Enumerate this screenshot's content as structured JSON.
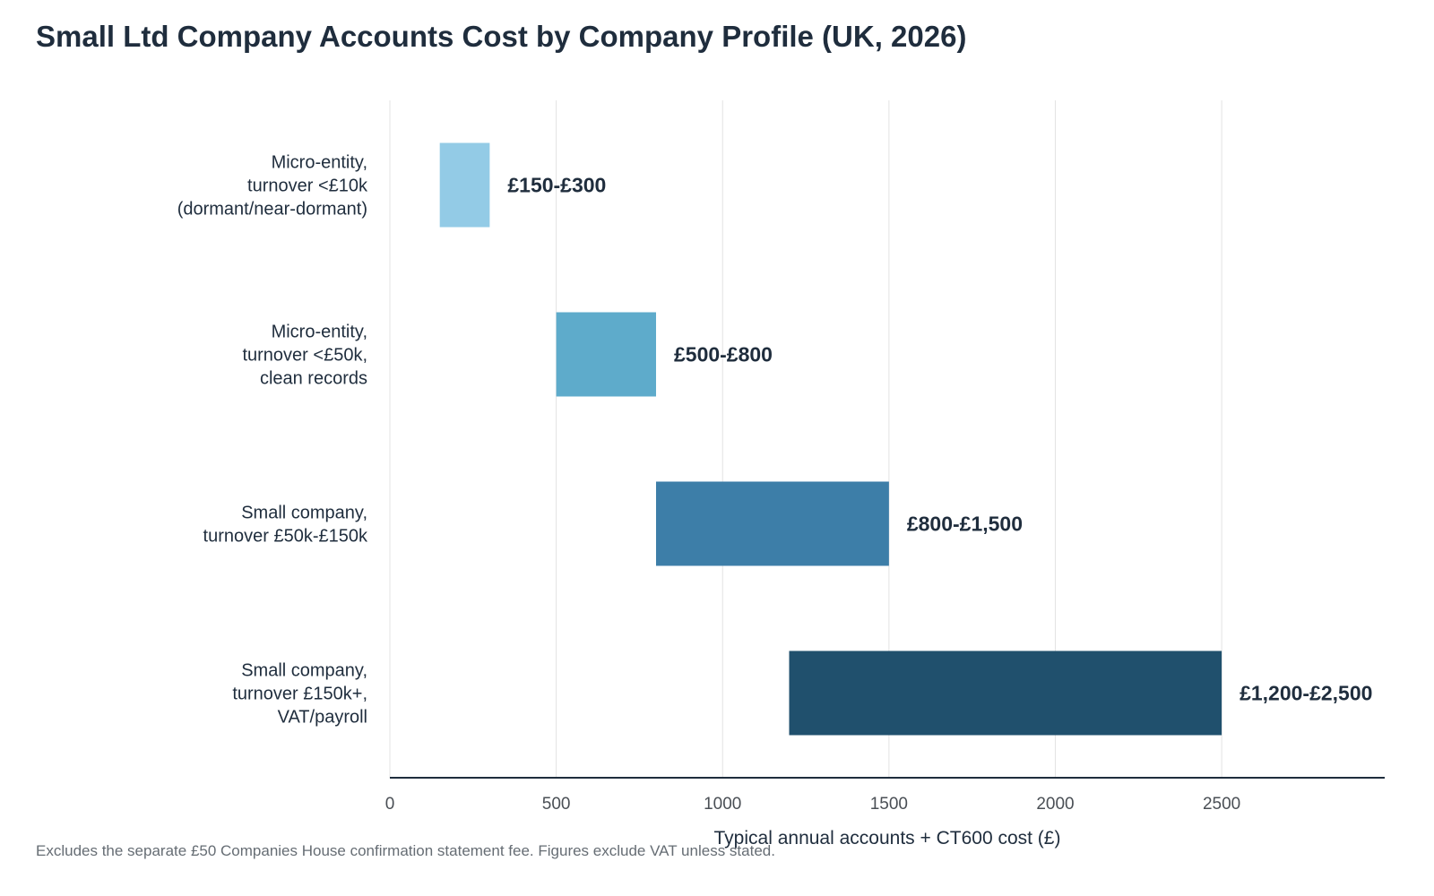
{
  "chart_data": {
    "type": "bar",
    "orientation": "horizontal",
    "title": "Small Ltd Company Accounts Cost by Company Profile (UK, 2026)",
    "xlabel": "Typical annual accounts + CT600 cost (£)",
    "ylabel": "",
    "xlim": [
      0,
      2990
    ],
    "xticks": [
      0,
      500,
      1000,
      1500,
      2000,
      2500
    ],
    "grid": "vertical",
    "legend": "none",
    "categories": [
      [
        "Micro-entity,",
        "turnover <£10k",
        "(dormant/near-dormant)"
      ],
      [
        "Micro-entity,",
        "turnover <£50k,",
        "clean records"
      ],
      [
        "Small company,",
        "turnover £50k-£150k"
      ],
      [
        "Small company,",
        "turnover £150k+,",
        "VAT/payroll"
      ]
    ],
    "ranges": [
      {
        "low": 150,
        "high": 300,
        "label": "£150-£300",
        "color": "#93cbe6"
      },
      {
        "low": 500,
        "high": 800,
        "label": "£500-£800",
        "color": "#5eabcb"
      },
      {
        "low": 800,
        "high": 1500,
        "label": "£800-£1,500",
        "color": "#3d7ea8"
      },
      {
        "low": 1200,
        "high": 2500,
        "label": "£1,200-£2,500",
        "color": "#20506d"
      }
    ],
    "footnote": "Excludes the separate £50 Companies House confirmation statement fee. Figures exclude VAT unless stated."
  }
}
